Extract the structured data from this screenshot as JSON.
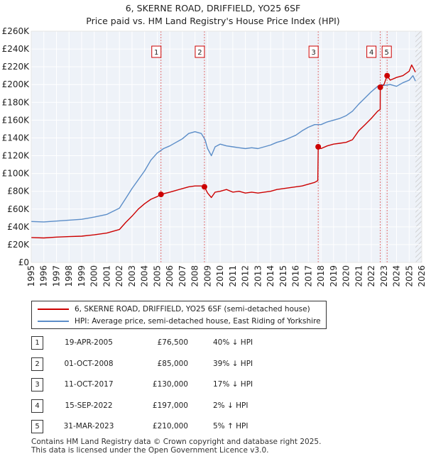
{
  "title_line1": "6, SKERNE ROAD, DRIFFIELD, YO25 6SF",
  "title_line2": "Price paid vs. HM Land Registry's House Price Index (HPI)",
  "chart_data": {
    "type": "line",
    "title": "6, SKERNE ROAD, DRIFFIELD, YO25 6SF",
    "subtitle": "Price paid vs. HM Land Registry's House Price Index (HPI)",
    "xlabel": "",
    "ylabel": "",
    "xlim": [
      1995,
      2026
    ],
    "ylim": [
      0,
      260000
    ],
    "x_ticks": [
      1995,
      1996,
      1997,
      1998,
      1999,
      2000,
      2001,
      2002,
      2003,
      2004,
      2005,
      2006,
      2007,
      2008,
      2009,
      2010,
      2011,
      2012,
      2013,
      2014,
      2015,
      2016,
      2017,
      2018,
      2019,
      2020,
      2021,
      2022,
      2023,
      2024,
      2025,
      2026
    ],
    "y_ticks": [
      {
        "value": 0,
        "label": "£0"
      },
      {
        "value": 20000,
        "label": "£20K"
      },
      {
        "value": 40000,
        "label": "£40K"
      },
      {
        "value": 60000,
        "label": "£60K"
      },
      {
        "value": 80000,
        "label": "£80K"
      },
      {
        "value": 100000,
        "label": "£100K"
      },
      {
        "value": 120000,
        "label": "£120K"
      },
      {
        "value": 140000,
        "label": "£140K"
      },
      {
        "value": 160000,
        "label": "£160K"
      },
      {
        "value": 180000,
        "label": "£180K"
      },
      {
        "value": 200000,
        "label": "£200K"
      },
      {
        "value": 220000,
        "label": "£220K"
      },
      {
        "value": 240000,
        "label": "£240K"
      },
      {
        "value": 260000,
        "label": "£260K"
      }
    ],
    "grid": true,
    "series": [
      {
        "name": "6, SKERNE ROAD, DRIFFIELD, YO25 6SF (semi-detached house)",
        "color": "#cc0000",
        "points": [
          [
            1995.0,
            28000
          ],
          [
            1996.0,
            27500
          ],
          [
            1997.0,
            28500
          ],
          [
            1998.0,
            29000
          ],
          [
            1999.0,
            29500
          ],
          [
            2000.0,
            31000
          ],
          [
            2001.0,
            33000
          ],
          [
            2002.0,
            37000
          ],
          [
            2002.5,
            45000
          ],
          [
            2003.0,
            52000
          ],
          [
            2003.5,
            60000
          ],
          [
            2004.0,
            66000
          ],
          [
            2004.5,
            71000
          ],
          [
            2005.0,
            74000
          ],
          [
            2005.3,
            76500
          ],
          [
            2006.0,
            79000
          ],
          [
            2006.5,
            81000
          ],
          [
            2007.0,
            83000
          ],
          [
            2007.5,
            85000
          ],
          [
            2008.0,
            86000
          ],
          [
            2008.5,
            86000
          ],
          [
            2008.75,
            85000
          ],
          [
            2009.0,
            78000
          ],
          [
            2009.3,
            73000
          ],
          [
            2009.6,
            79000
          ],
          [
            2010.0,
            80000
          ],
          [
            2010.5,
            82000
          ],
          [
            2011.0,
            79000
          ],
          [
            2011.5,
            80000
          ],
          [
            2012.0,
            78000
          ],
          [
            2012.5,
            79000
          ],
          [
            2013.0,
            78000
          ],
          [
            2013.5,
            79000
          ],
          [
            2014.0,
            80000
          ],
          [
            2014.5,
            82000
          ],
          [
            2015.0,
            83000
          ],
          [
            2015.5,
            84000
          ],
          [
            2016.0,
            85000
          ],
          [
            2016.5,
            86000
          ],
          [
            2017.0,
            88000
          ],
          [
            2017.5,
            90000
          ],
          [
            2017.75,
            92000
          ],
          [
            2017.78,
            130000
          ],
          [
            2018.0,
            128000
          ],
          [
            2018.5,
            131000
          ],
          [
            2019.0,
            133000
          ],
          [
            2019.5,
            134000
          ],
          [
            2020.0,
            135000
          ],
          [
            2020.5,
            138000
          ],
          [
            2021.0,
            148000
          ],
          [
            2021.5,
            155000
          ],
          [
            2022.0,
            162000
          ],
          [
            2022.5,
            170000
          ],
          [
            2022.7,
            172000
          ],
          [
            2022.71,
            197000
          ],
          [
            2023.0,
            200000
          ],
          [
            2023.25,
            210000
          ],
          [
            2023.5,
            205000
          ],
          [
            2024.0,
            208000
          ],
          [
            2024.5,
            210000
          ],
          [
            2025.0,
            215000
          ],
          [
            2025.2,
            222000
          ],
          [
            2025.5,
            214000
          ]
        ]
      },
      {
        "name": "HPI: Average price, semi-detached house, East Riding of Yorkshire",
        "color": "#5b8dc8",
        "points": [
          [
            1995.0,
            46000
          ],
          [
            1996.0,
            45500
          ],
          [
            1997.0,
            46500
          ],
          [
            1998.0,
            47500
          ],
          [
            1999.0,
            48500
          ],
          [
            2000.0,
            51000
          ],
          [
            2001.0,
            54000
          ],
          [
            2002.0,
            61000
          ],
          [
            2002.5,
            72000
          ],
          [
            2003.0,
            83000
          ],
          [
            2003.5,
            93000
          ],
          [
            2004.0,
            103000
          ],
          [
            2004.5,
            115000
          ],
          [
            2005.0,
            123000
          ],
          [
            2005.5,
            128000
          ],
          [
            2006.0,
            131000
          ],
          [
            2006.5,
            135000
          ],
          [
            2007.0,
            139000
          ],
          [
            2007.5,
            145000
          ],
          [
            2008.0,
            147000
          ],
          [
            2008.5,
            145000
          ],
          [
            2008.8,
            138000
          ],
          [
            2009.0,
            128000
          ],
          [
            2009.3,
            120000
          ],
          [
            2009.6,
            130000
          ],
          [
            2010.0,
            133000
          ],
          [
            2010.5,
            131000
          ],
          [
            2011.0,
            130000
          ],
          [
            2011.5,
            129000
          ],
          [
            2012.0,
            128000
          ],
          [
            2012.5,
            129000
          ],
          [
            2013.0,
            128000
          ],
          [
            2013.5,
            130000
          ],
          [
            2014.0,
            132000
          ],
          [
            2014.5,
            135000
          ],
          [
            2015.0,
            137000
          ],
          [
            2015.5,
            140000
          ],
          [
            2016.0,
            143000
          ],
          [
            2016.5,
            148000
          ],
          [
            2017.0,
            152000
          ],
          [
            2017.5,
            155000
          ],
          [
            2018.0,
            155000
          ],
          [
            2018.5,
            158000
          ],
          [
            2019.0,
            160000
          ],
          [
            2019.5,
            162000
          ],
          [
            2020.0,
            165000
          ],
          [
            2020.5,
            170000
          ],
          [
            2021.0,
            178000
          ],
          [
            2021.5,
            185000
          ],
          [
            2022.0,
            192000
          ],
          [
            2022.5,
            198000
          ],
          [
            2022.8,
            200000
          ],
          [
            2023.0,
            199000
          ],
          [
            2023.5,
            200000
          ],
          [
            2024.0,
            198000
          ],
          [
            2024.5,
            202000
          ],
          [
            2025.0,
            205000
          ],
          [
            2025.3,
            210000
          ],
          [
            2025.5,
            204000
          ]
        ]
      }
    ],
    "transactions": [
      {
        "num": "1",
        "date": "19-APR-2005",
        "x": 2005.3,
        "price": 76500,
        "price_label": "£76,500",
        "hpi": "40% ↓ HPI"
      },
      {
        "num": "2",
        "date": "01-OCT-2008",
        "x": 2008.75,
        "price": 85000,
        "price_label": "£85,000",
        "hpi": "39% ↓ HPI"
      },
      {
        "num": "3",
        "date": "11-OCT-2017",
        "x": 2017.78,
        "price": 130000,
        "price_label": "£130,000",
        "hpi": "17% ↓ HPI"
      },
      {
        "num": "4",
        "date": "15-SEP-2022",
        "x": 2022.71,
        "price": 197000,
        "price_label": "£197,000",
        "hpi": "2% ↓ HPI"
      },
      {
        "num": "5",
        "date": "31-MAR-2023",
        "x": 2023.25,
        "price": 210000,
        "price_label": "£210,000",
        "hpi": "5% ↑ HPI"
      }
    ],
    "hatch_from": 2025.5
  },
  "legend": {
    "property_label": "6, SKERNE ROAD, DRIFFIELD, YO25 6SF (semi-detached house)",
    "hpi_label": "HPI: Average price, semi-detached house, East Riding of Yorkshire",
    "property_color": "#cc0000",
    "hpi_color": "#5b8dc8"
  },
  "footer": {
    "line1": "Contains HM Land Registry data © Crown copyright and database right 2025.",
    "line2": "This data is licensed under the Open Government Licence v3.0."
  }
}
